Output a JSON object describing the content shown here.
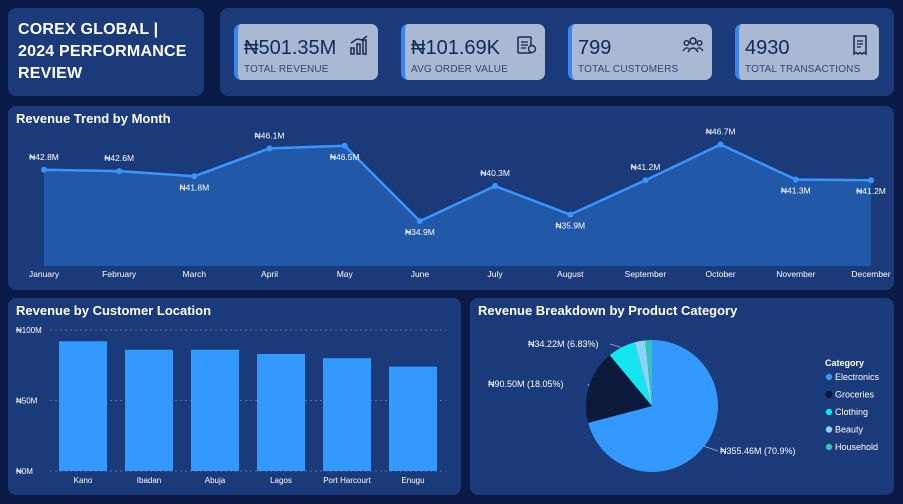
{
  "title": "COREX GLOBAL | 2024 PERFORMANCE REVIEW",
  "title_lines": [
    "COREX GLOBAL |",
    "2024 PERFORMANCE",
    "REVIEW"
  ],
  "kpis": [
    {
      "value": "₦501.35M",
      "label": "TOTAL REVENUE",
      "icon": "chart-up-icon"
    },
    {
      "value": "₦101.69K",
      "label": "AVG ORDER VALUE",
      "icon": "invoice-icon"
    },
    {
      "value": "799",
      "label": "TOTAL CUSTOMERS",
      "icon": "users-icon"
    },
    {
      "value": "4930",
      "label": "TOTAL TRANSACTIONS",
      "icon": "receipt-icon"
    }
  ],
  "colors": {
    "accent": "#3a86f0",
    "bar": "#3399ff",
    "background": "#0a1a47",
    "panel": "#1b3a7a"
  },
  "chart_data": [
    {
      "type": "area",
      "title": "Revenue Trend by Month",
      "categories": [
        "January",
        "February",
        "March",
        "April",
        "May",
        "June",
        "July",
        "August",
        "September",
        "October",
        "November",
        "December"
      ],
      "values": [
        42.8,
        42.6,
        41.8,
        46.1,
        46.5,
        34.9,
        40.3,
        35.9,
        41.2,
        46.7,
        41.3,
        41.2
      ],
      "data_labels": [
        "₦42.8M",
        "₦42.6M",
        "₦41.8M",
        "₦46.1M",
        "₦46.5M",
        "₦34.9M",
        "₦40.3M",
        "₦35.9M",
        "₦41.2M",
        "₦46.7M",
        "₦41.3M",
        "₦41.2M"
      ],
      "ylim": [
        28,
        48
      ],
      "grid": false
    },
    {
      "type": "bar",
      "title": "Revenue by Customer Location",
      "categories": [
        "Kano",
        "Ibadan",
        "Abuja",
        "Lagos",
        "Port Harcourt",
        "Enugu"
      ],
      "values": [
        92,
        86,
        86,
        83,
        80,
        74
      ],
      "ylim": [
        0,
        100
      ],
      "yticks": [
        "₦100M",
        "₦50M",
        "₦0M"
      ],
      "ytick_values": [
        100,
        50,
        0
      ],
      "grid": true
    },
    {
      "type": "pie",
      "title": "Revenue Breakdown by Product Category",
      "legend_title": "Category",
      "legend_position": "right",
      "slices": [
        {
          "name": "Electronics",
          "value": 355.46,
          "label": "₦355.46M (70.9%)",
          "color": "#3399ff"
        },
        {
          "name": "Groceries",
          "value": 90.5,
          "label": "₦90.50M (18.05%)",
          "color": "#0b1a3a"
        },
        {
          "name": "Clothing",
          "value": 34.22,
          "label": "₦34.22M (6.83%)",
          "color": "#14e6f0"
        },
        {
          "name": "Beauty",
          "value": 13.0,
          "label": "",
          "color": "#8fd3f7"
        },
        {
          "name": "Household",
          "value": 8.17,
          "label": "",
          "color": "#2fc4b8"
        }
      ]
    }
  ]
}
